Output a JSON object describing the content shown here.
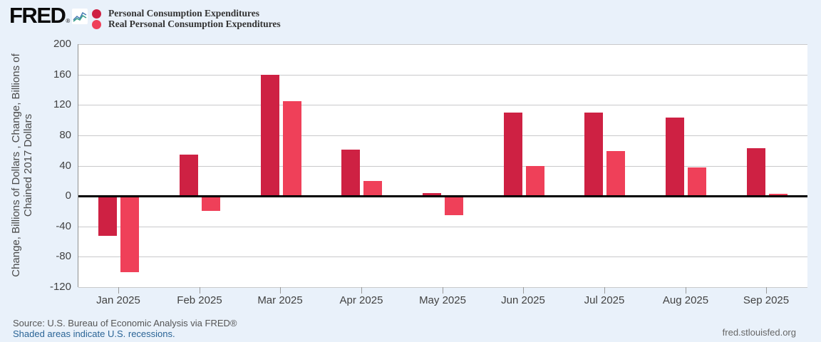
{
  "header": {
    "logo_text": "FRED",
    "registered_mark": "®",
    "legend": [
      {
        "label": "Personal Consumption Expenditures",
        "color": "#ce2143"
      },
      {
        "label": "Real Personal Consumption Expenditures",
        "color": "#ef4059"
      }
    ]
  },
  "chart_data": {
    "type": "bar",
    "categories": [
      "Jan 2025",
      "Feb 2025",
      "Mar 2025",
      "Apr 2025",
      "May 2025",
      "Jun 2025",
      "Jul 2025",
      "Aug 2025",
      "Sep 2025"
    ],
    "series": [
      {
        "name": "Personal Consumption Expenditures",
        "color": "#ce2143",
        "values": [
          -53,
          55,
          160,
          61,
          4,
          110,
          110,
          103,
          63
        ]
      },
      {
        "name": "Real Personal Consumption Expenditures",
        "color": "#ef4059",
        "values": [
          -100,
          -20,
          125,
          20,
          -25,
          40,
          59,
          38,
          3
        ]
      }
    ],
    "title": "",
    "xlabel": "",
    "ylabel": "Change, Billions of Dollars , Change, Billions of Chained 2017 Dollars",
    "ylabel_lines": [
      "Change, Billions of Dollars , Change, Billions of",
      "Chained 2017 Dollars"
    ],
    "ylim": [
      -120,
      200
    ],
    "ytick_step": 40,
    "grid": true,
    "legend_position": "top-left",
    "zero_line_color": "#000000",
    "plot_background": "#ffffff",
    "page_background": "#e9f1fa"
  },
  "footer": {
    "source": "Source: U.S. Bureau of Economic Analysis via FRED®",
    "recession_note": "Shaded areas indicate U.S. recessions.",
    "site": "fred.stlouisfed.org"
  }
}
